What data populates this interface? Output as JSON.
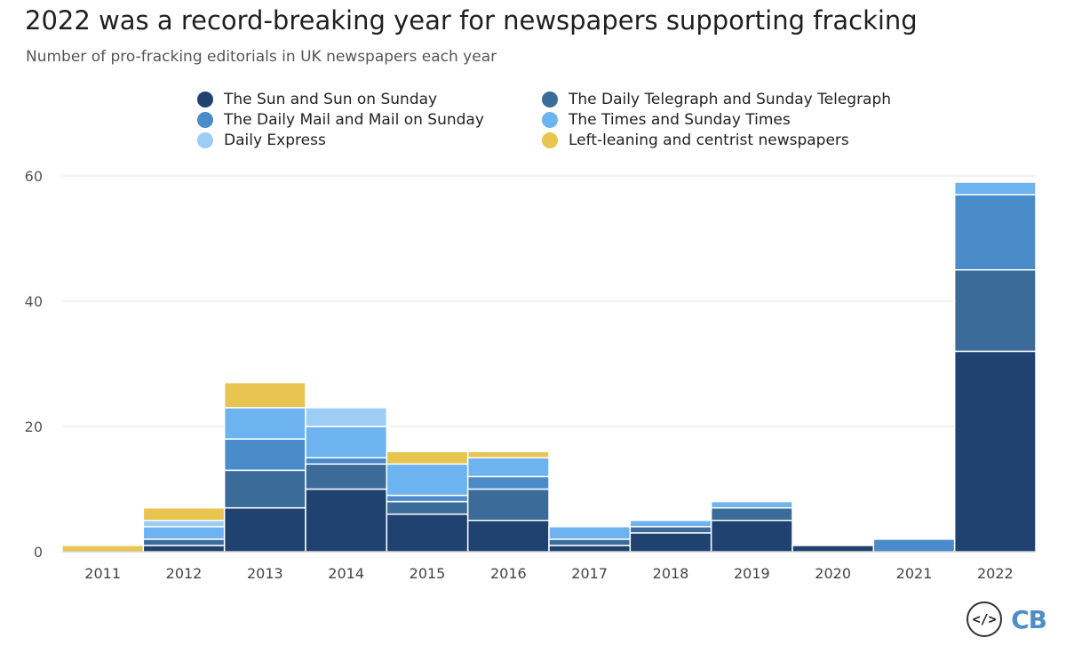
{
  "chart_data": {
    "type": "bar",
    "stacked": true,
    "title": "2022 was a record-breaking year for newspapers supporting fracking",
    "subtitle": "Number of pro-fracking editorials in UK newspapers each year",
    "xlabel": "",
    "ylabel": "",
    "ylim": [
      0,
      60
    ],
    "yticks": [
      0,
      20,
      40,
      60
    ],
    "grid": true,
    "legend_position": "top",
    "categories": [
      "2011",
      "2012",
      "2013",
      "2014",
      "2015",
      "2016",
      "2017",
      "2018",
      "2019",
      "2020",
      "2021",
      "2022"
    ],
    "series": [
      {
        "name": "The Sun and Sun on Sunday",
        "color": "#1f4270",
        "values": [
          0,
          1,
          7,
          10,
          6,
          5,
          1,
          3,
          5,
          1,
          0,
          32
        ]
      },
      {
        "name": "The Daily Telegraph and Sunday Telegraph",
        "color": "#3a6b99",
        "values": [
          0,
          1,
          6,
          4,
          2,
          5,
          1,
          1,
          2,
          0,
          0,
          13
        ]
      },
      {
        "name": "The Daily Mail and Mail on Sunday",
        "color": "#4a8bc9",
        "values": [
          0,
          0,
          5,
          1,
          1,
          2,
          0,
          0,
          0,
          0,
          2,
          12
        ]
      },
      {
        "name": "The Times and Sunday Times",
        "color": "#6cb3f0",
        "values": [
          0,
          2,
          5,
          5,
          5,
          3,
          2,
          1,
          1,
          0,
          0,
          2
        ]
      },
      {
        "name": "Daily Express",
        "color": "#9dcdf4",
        "values": [
          0,
          1,
          0,
          3,
          0,
          0,
          0,
          0,
          0,
          0,
          0,
          0
        ]
      },
      {
        "name": "Left-leaning and centrist newspapers",
        "color": "#e8c550",
        "values": [
          1,
          2,
          4,
          0,
          2,
          1,
          0,
          0,
          0,
          0,
          0,
          0
        ]
      }
    ]
  },
  "icons": {
    "embed": "code-icon",
    "embed_label": "</>",
    "logo": "CB"
  }
}
